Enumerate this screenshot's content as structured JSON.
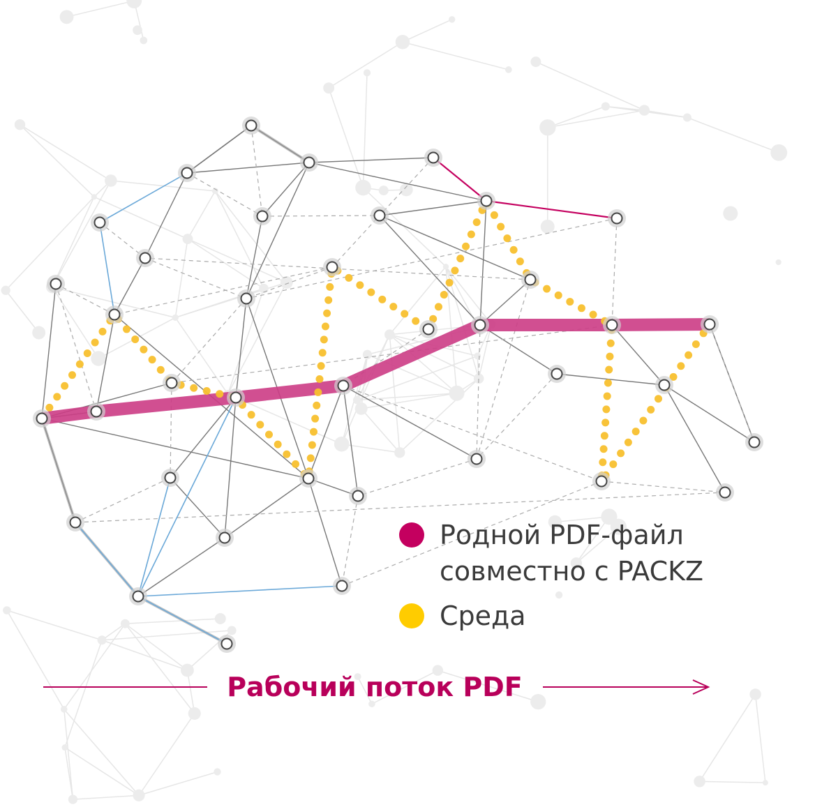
{
  "legend": [
    {
      "lines": [
        "Родной PDF-файл",
        "совместно с PACKZ"
      ],
      "color": "#c4005f"
    },
    {
      "lines": [
        "Среда"
      ],
      "color": "#ffcc00"
    }
  ],
  "footer": {
    "label": "Рабочий поток PDF"
  }
}
